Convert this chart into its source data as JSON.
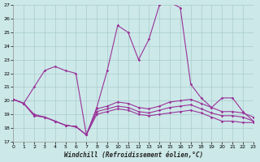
{
  "xlabel": "Windchill (Refroidissement éolien,°C)",
  "background_color": "#cce8e8",
  "grid_color": "#aacccc",
  "line_color": "#993399",
  "xlim": [
    0,
    23
  ],
  "ylim": [
    17,
    27
  ],
  "xtick_vals": [
    0,
    1,
    2,
    3,
    4,
    5,
    6,
    7,
    8,
    9,
    10,
    11,
    12,
    13,
    14,
    15,
    16,
    17,
    18,
    19,
    20,
    21,
    22,
    23
  ],
  "ytick_vals": [
    17,
    18,
    19,
    20,
    21,
    22,
    23,
    24,
    25,
    26,
    27
  ],
  "series": [
    [
      20.1,
      19.8,
      19.0,
      18.8,
      18.5,
      18.2,
      18.1,
      17.5,
      19.0,
      19.2,
      19.4,
      19.3,
      19.0,
      18.9,
      19.0,
      19.1,
      19.2,
      19.3,
      19.1,
      18.8,
      18.5,
      18.5,
      18.4,
      18.4
    ],
    [
      20.1,
      19.8,
      18.9,
      18.8,
      18.5,
      18.2,
      18.1,
      17.5,
      19.2,
      19.4,
      19.6,
      19.5,
      19.2,
      19.1,
      19.3,
      19.5,
      19.6,
      19.7,
      19.4,
      19.1,
      18.9,
      18.9,
      18.8,
      18.5
    ],
    [
      20.1,
      19.8,
      18.9,
      18.8,
      18.5,
      18.2,
      18.1,
      17.5,
      19.4,
      19.6,
      19.9,
      19.8,
      19.5,
      19.4,
      19.6,
      19.9,
      20.0,
      20.1,
      19.8,
      19.5,
      19.2,
      19.2,
      19.1,
      18.8
    ],
    [
      20.1,
      19.8,
      21.0,
      22.2,
      22.5,
      22.2,
      22.0,
      17.5,
      19.5,
      22.2,
      25.5,
      25.0,
      23.0,
      24.5,
      27.0,
      27.2,
      26.8,
      21.2,
      20.2,
      19.5,
      20.2,
      20.2,
      19.2,
      18.5
    ]
  ]
}
